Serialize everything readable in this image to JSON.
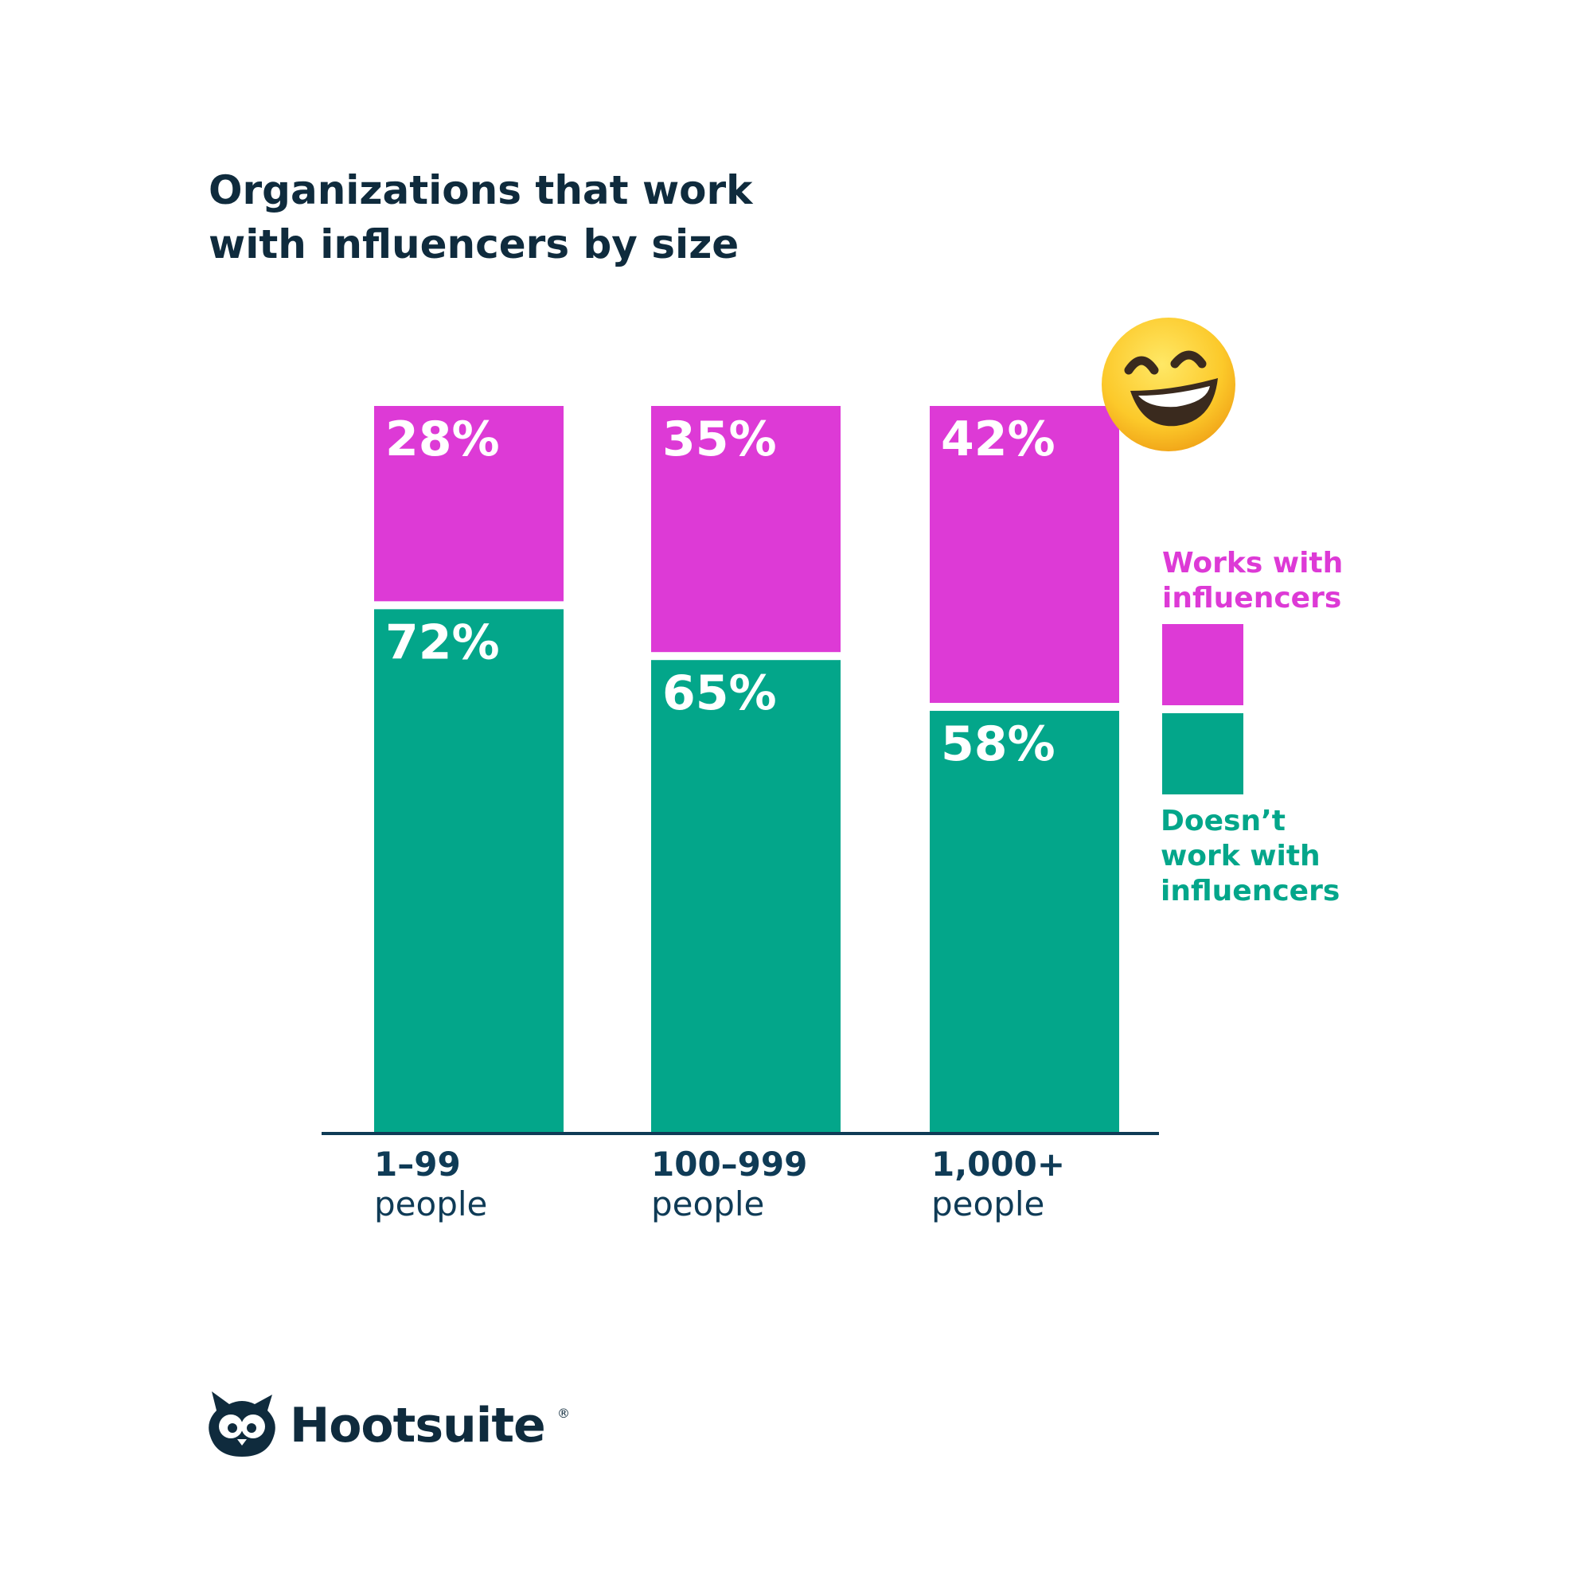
{
  "chart_data": {
    "type": "bar",
    "stacked": true,
    "title": "Organizations that work with influencers by size",
    "title_lines": [
      "Organizations that work",
      "with influencers by size"
    ],
    "categories": [
      {
        "main": "1–99",
        "sub": "people"
      },
      {
        "main": "100–999",
        "sub": "people"
      },
      {
        "main": "1,000+",
        "sub": "people"
      }
    ],
    "series": [
      {
        "name": "Doesn’t work with influencers",
        "name_lines": [
          "Doesn’t",
          "work with",
          "influencers"
        ],
        "color": "#03a68a",
        "values": [
          72,
          65,
          58
        ],
        "labels": [
          "72%",
          "65%",
          "58%"
        ]
      },
      {
        "name": "Works with influencers",
        "name_lines": [
          "Works with",
          "influencers"
        ],
        "color": "#dd3ad6",
        "values": [
          28,
          35,
          42
        ],
        "labels": [
          "28%",
          "35%",
          "42%"
        ]
      }
    ],
    "ylim": [
      0,
      100
    ],
    "unit": "%",
    "legend_position": "right",
    "grid": false
  },
  "brand": {
    "name": "Hootsuite",
    "mark": "®",
    "logo_icon": "owl-logo-icon"
  },
  "decoration": {
    "emoji_icon": "grinning-face-emoji-icon"
  },
  "colors": {
    "title": "#0f2b3d",
    "axis": "#0f3b56",
    "works": "#dd3ad6",
    "doesnt": "#03a68a"
  }
}
